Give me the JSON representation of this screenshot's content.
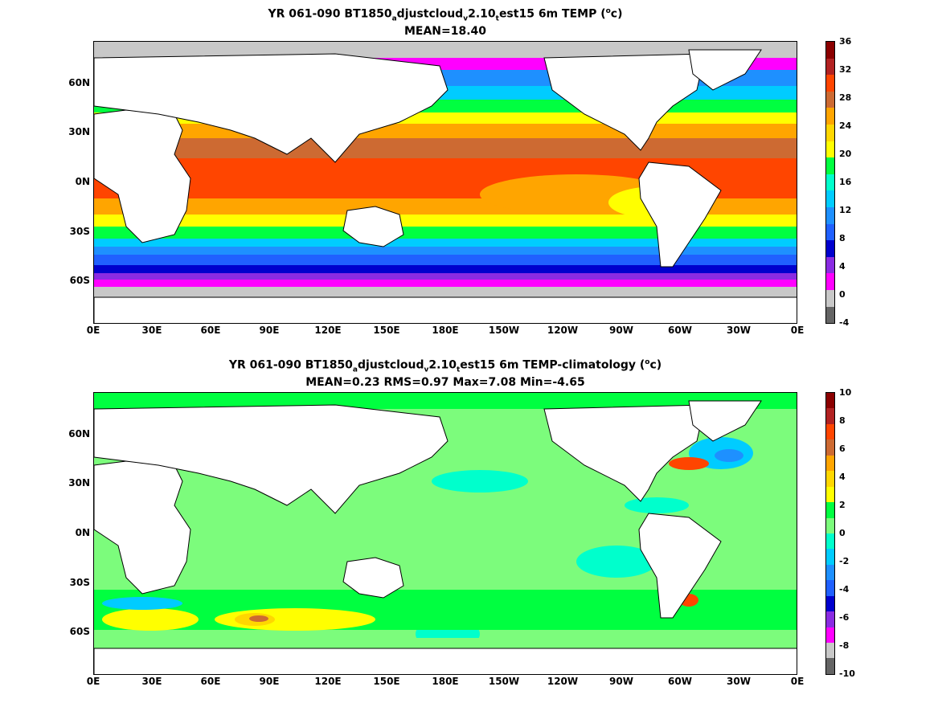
{
  "top_panel": {
    "title_pre": "YR 061-090 BT1850",
    "title_sub1": "a",
    "title_mid1": "djustcloud",
    "title_sub2": "v",
    "title_mid2": "2.10",
    "title_sub3": "t",
    "title_post": "est15 6m TEMP (",
    "title_sup": "o",
    "title_end": "c)",
    "subtitle": "MEAN=18.40",
    "colorbar_ticks": [
      "36",
      "32",
      "28",
      "24",
      "20",
      "16",
      "12",
      "8",
      "4",
      "0",
      "-4"
    ],
    "colorbar_colors": [
      "#8b0000",
      "#b22222",
      "#ff4500",
      "#cd6a32",
      "#ffa500",
      "#ffd700",
      "#ffff00",
      "#00ff40",
      "#00ffcc",
      "#00ccff",
      "#1e90ff",
      "#2060ff",
      "#0000cd",
      "#8a2be2",
      "#ff00ff",
      "#c8c8c8",
      "#646464"
    ]
  },
  "bottom_panel": {
    "title_pre": "YR 061-090 BT1850",
    "title_sub1": "a",
    "title_mid1": "djustcloud",
    "title_sub2": "v",
    "title_mid2": "2.10",
    "title_sub3": "t",
    "title_post": "est15 6m TEMP-climatology (",
    "title_sup": "o",
    "title_end": "c)",
    "subtitle": "MEAN=0.23   RMS=0.97   Max=7.08   Min=-4.65",
    "colorbar_ticks": [
      "10",
      "8",
      "6",
      "4",
      "2",
      "0",
      "-2",
      "-4",
      "-6",
      "-8",
      "-10"
    ],
    "colorbar_colors": [
      "#8b0000",
      "#b22222",
      "#ff4500",
      "#cd6a32",
      "#ffa500",
      "#ffd700",
      "#ffff00",
      "#00ff40",
      "#7cfc7c",
      "#00ffcc",
      "#00ccff",
      "#1e90ff",
      "#2060ff",
      "#0000cd",
      "#8a2be2",
      "#ff00ff",
      "#c8c8c8",
      "#646464"
    ]
  },
  "lat_labels": [
    "60N",
    "30N",
    "0N",
    "30S",
    "60S"
  ],
  "lon_labels": [
    "0E",
    "30E",
    "60E",
    "90E",
    "120E",
    "150E",
    "180E",
    "150W",
    "120W",
    "90W",
    "60W",
    "30W",
    "0E"
  ]
}
